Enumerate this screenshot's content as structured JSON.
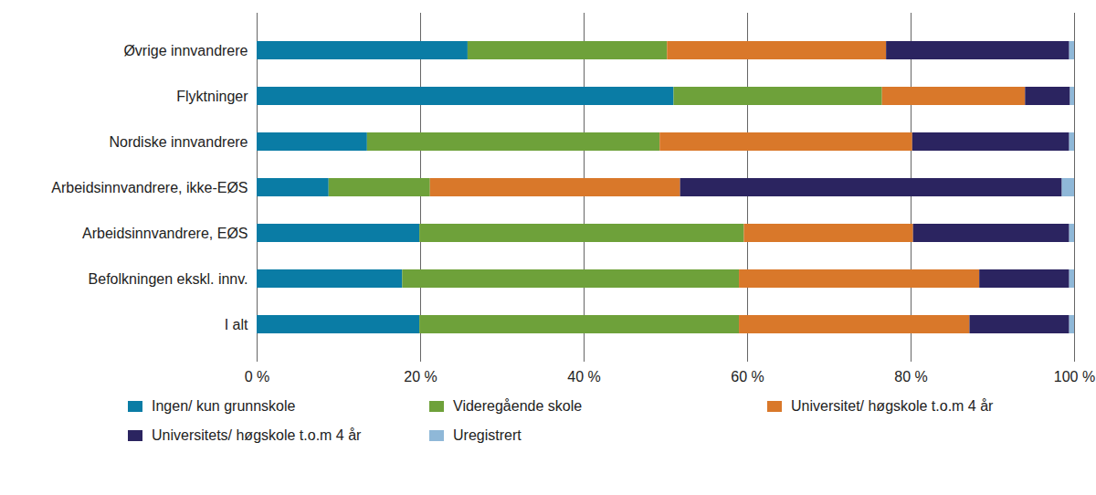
{
  "chart_data": {
    "type": "bar",
    "orientation": "horizontal",
    "stacked": true,
    "grid": true,
    "legend": "bottom",
    "categories": [
      "Øvrige innvandrere",
      "Flyktninger",
      "Nordiske innvandrere",
      "Arbeidsinnvandrere, ikke-EØS",
      "Arbeidsinnvandrere, EØS",
      "Befolkningen ekskl. innv.",
      "I alt"
    ],
    "series": [
      {
        "name": "Ingen/ kun grunnskole",
        "color": "#0a7ca5",
        "values": [
          25.8,
          51.0,
          13.5,
          8.8,
          19.9,
          17.8,
          19.9
        ]
      },
      {
        "name": "Videregående skole",
        "color": "#6ea13a",
        "values": [
          24.4,
          25.5,
          35.8,
          12.4,
          39.7,
          41.2,
          39.1
        ]
      },
      {
        "name": "Universitet/ høgskole t.o.m 4 år",
        "color": "#d9782a",
        "values": [
          26.8,
          17.5,
          30.9,
          30.6,
          20.7,
          29.4,
          28.2
        ]
      },
      {
        "name": "Universitets/ høgskole t.o.m 4 år",
        "color": "#2b2460",
        "values": [
          22.4,
          5.5,
          19.2,
          46.7,
          19.1,
          11.0,
          12.2
        ]
      },
      {
        "name": "Uregistrert",
        "color": "#8fb8d8",
        "values": [
          0.6,
          0.5,
          0.6,
          1.5,
          0.6,
          0.6,
          0.6
        ]
      }
    ],
    "xlim": [
      0,
      100
    ],
    "xticks": [
      {
        "value": 0,
        "label": "0 %"
      },
      {
        "value": 20,
        "label": "20 %"
      },
      {
        "value": 40,
        "label": "40 %"
      },
      {
        "value": 60,
        "label": "60 %"
      },
      {
        "value": 80,
        "label": "80 %"
      },
      {
        "value": 100,
        "label": "100 %"
      }
    ]
  }
}
